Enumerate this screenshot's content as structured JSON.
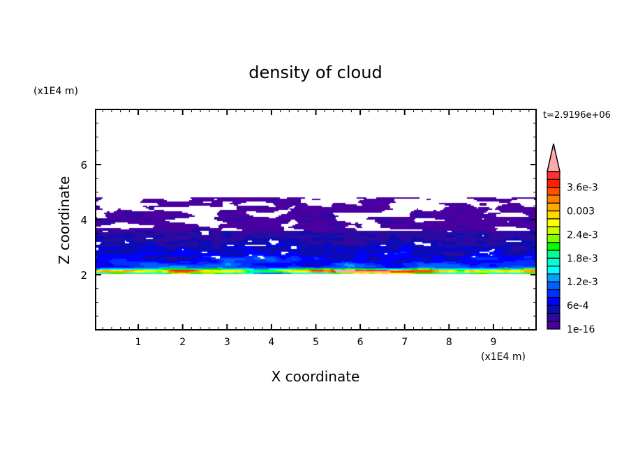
{
  "chart_data": {
    "type": "heatmap",
    "subtype": "filled-contour",
    "title": "density of cloud",
    "xlabel": "X coordinate",
    "ylabel": "Z coordinate",
    "x_unit": "(x1E4 m)",
    "y_unit": "(x1E4 m)",
    "time_label": "t=2.9196e+06",
    "xlim": [
      0.04,
      9.96
    ],
    "ylim": [
      0,
      8
    ],
    "x_ticks": [
      1,
      2,
      3,
      4,
      5,
      6,
      7,
      8,
      9
    ],
    "x_tick_labels": [
      "1",
      "2",
      "3",
      "4",
      "5",
      "6",
      "7",
      "8",
      "9"
    ],
    "y_ticks": [
      2,
      4,
      6
    ],
    "y_tick_labels": [
      "2",
      "4",
      "6"
    ],
    "x_minor_step": 0.2,
    "y_minor_step": 0.5,
    "grid": false,
    "colorbar": {
      "levels_min": 1e-16,
      "level_step": 0.0002,
      "level_count": 20,
      "extend": "max",
      "tick_values": [
        1e-16,
        0.0006,
        0.0012,
        0.0018,
        0.0024,
        0.003,
        0.0036
      ],
      "tick_labels": [
        "1e-16",
        "6e-4",
        "1.2e-3",
        "1.8e-3",
        "2.4e-3",
        "0.003",
        "3.6e-3"
      ],
      "colors": [
        "#4a00a0",
        "#2a0aa0",
        "#0c0cb4",
        "#0000ff",
        "#0030ff",
        "#0060ff",
        "#00a0ff",
        "#00ffff",
        "#00ffd0",
        "#00ff90",
        "#00ff00",
        "#80ff00",
        "#c8ff00",
        "#ffff00",
        "#ffd800",
        "#ffa800",
        "#ff8000",
        "#ff5000",
        "#ff2000",
        "#ff3030"
      ],
      "over_color": "#ffaaaa"
    },
    "cloud_layer": {
      "z_bottom": 2.05,
      "z_top": 4.8,
      "peak_near_z": 2.15
    }
  }
}
